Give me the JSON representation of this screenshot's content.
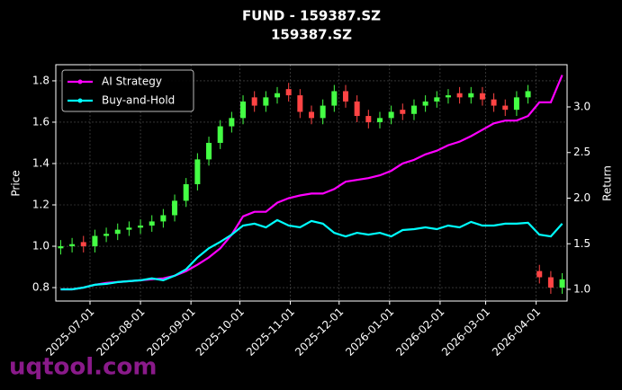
{
  "chart_data": {
    "type": "candlestick",
    "title": "FUND - 159387.SZ",
    "subtitle": "159387.SZ",
    "ylabel": "Price",
    "y2label": "Return",
    "watermark": "uqtool.com",
    "up_color": "#44ff44",
    "down_color": "#ff4444",
    "grid": true,
    "legend": "upper-left",
    "x": [
      "2025-06-13",
      "2025-06-20",
      "2025-06-27",
      "2025-07-04",
      "2025-07-11",
      "2025-07-18",
      "2025-07-25",
      "2025-08-01",
      "2025-08-08",
      "2025-08-15",
      "2025-08-22",
      "2025-08-29",
      "2025-09-05",
      "2025-09-12",
      "2025-09-19",
      "2025-09-26",
      "2025-10-03",
      "2025-10-10",
      "2025-10-17",
      "2025-10-24",
      "2025-10-31",
      "2025-11-07",
      "2025-11-14",
      "2025-11-21",
      "2025-11-28",
      "2025-12-05",
      "2025-12-12",
      "2025-12-19",
      "2025-12-26",
      "2026-01-02",
      "2026-01-09",
      "2026-01-16",
      "2026-01-23",
      "2026-01-30",
      "2026-02-06",
      "2026-02-13",
      "2026-02-20",
      "2026-02-27",
      "2026-03-06",
      "2026-03-13",
      "2026-03-20",
      "2026-03-27",
      "2026-04-03",
      "2026-04-10",
      "2026-04-17"
    ],
    "open": [
      0.99,
      1.0,
      1.02,
      1.0,
      1.05,
      1.06,
      1.08,
      1.09,
      1.1,
      1.12,
      1.15,
      1.22,
      1.3,
      1.42,
      1.5,
      1.58,
      1.62,
      1.72,
      1.68,
      1.72,
      1.76,
      1.73,
      1.65,
      1.62,
      1.68,
      1.75,
      1.7,
      1.63,
      1.6,
      1.62,
      1.66,
      1.64,
      1.68,
      1.7,
      1.72,
      1.74,
      1.72,
      1.74,
      1.71,
      1.68,
      1.66,
      1.72,
      0.88,
      0.85,
      0.8
    ],
    "high": [
      1.03,
      1.04,
      1.05,
      1.08,
      1.09,
      1.11,
      1.12,
      1.13,
      1.15,
      1.18,
      1.25,
      1.33,
      1.45,
      1.53,
      1.61,
      1.65,
      1.73,
      1.75,
      1.75,
      1.77,
      1.79,
      1.76,
      1.68,
      1.71,
      1.78,
      1.78,
      1.73,
      1.66,
      1.65,
      1.68,
      1.69,
      1.71,
      1.73,
      1.75,
      1.76,
      1.77,
      1.77,
      1.77,
      1.74,
      1.71,
      1.75,
      1.78,
      0.91,
      0.88,
      0.87
    ],
    "low": [
      0.96,
      0.97,
      0.97,
      0.97,
      1.02,
      1.03,
      1.05,
      1.06,
      1.07,
      1.09,
      1.12,
      1.19,
      1.27,
      1.39,
      1.47,
      1.55,
      1.59,
      1.65,
      1.65,
      1.69,
      1.7,
      1.62,
      1.59,
      1.59,
      1.65,
      1.67,
      1.6,
      1.57,
      1.57,
      1.59,
      1.61,
      1.61,
      1.65,
      1.67,
      1.69,
      1.69,
      1.69,
      1.68,
      1.65,
      1.63,
      1.63,
      1.69,
      0.82,
      0.77,
      0.77
    ],
    "close": [
      1.0,
      1.01,
      1.0,
      1.05,
      1.06,
      1.08,
      1.09,
      1.1,
      1.12,
      1.15,
      1.22,
      1.3,
      1.42,
      1.5,
      1.58,
      1.62,
      1.7,
      1.68,
      1.72,
      1.74,
      1.73,
      1.65,
      1.62,
      1.68,
      1.75,
      1.7,
      1.63,
      1.6,
      1.62,
      1.65,
      1.64,
      1.68,
      1.7,
      1.72,
      1.73,
      1.72,
      1.74,
      1.71,
      1.68,
      1.66,
      1.72,
      1.75,
      0.85,
      0.8,
      0.84
    ],
    "series": [
      {
        "name": "AI Strategy",
        "color": "#ff00ff",
        "axis": "y2",
        "values": [
          1.0,
          1.0,
          1.02,
          1.05,
          1.07,
          1.08,
          1.09,
          1.1,
          1.11,
          1.12,
          1.15,
          1.2,
          1.27,
          1.35,
          1.45,
          1.6,
          1.8,
          1.85,
          1.85,
          1.95,
          2.0,
          2.03,
          2.05,
          2.05,
          2.1,
          2.18,
          2.2,
          2.22,
          2.25,
          2.3,
          2.38,
          2.42,
          2.48,
          2.52,
          2.58,
          2.62,
          2.68,
          2.75,
          2.82,
          2.85,
          2.85,
          2.9,
          3.05,
          3.05,
          3.35
        ]
      },
      {
        "name": "Buy-and-Hold",
        "color": "#00ffff",
        "axis": "y2",
        "values": [
          1.0,
          1.0,
          1.02,
          1.05,
          1.06,
          1.08,
          1.09,
          1.1,
          1.12,
          1.1,
          1.15,
          1.22,
          1.35,
          1.45,
          1.52,
          1.6,
          1.7,
          1.72,
          1.68,
          1.76,
          1.7,
          1.68,
          1.75,
          1.72,
          1.62,
          1.58,
          1.62,
          1.6,
          1.62,
          1.58,
          1.65,
          1.66,
          1.68,
          1.66,
          1.7,
          1.68,
          1.74,
          1.7,
          1.7,
          1.72,
          1.72,
          1.73,
          1.6,
          1.58,
          1.72
        ]
      }
    ],
    "xlim": [
      "2025-06-10",
      "2026-04-20"
    ],
    "xticks": [
      "2025-07-01",
      "2025-08-01",
      "2025-09-01",
      "2025-10-01",
      "2025-11-01",
      "2025-12-01",
      "2026-01-01",
      "2026-02-01",
      "2026-03-01",
      "2026-04-01"
    ],
    "ylim": [
      0.735,
      1.878
    ],
    "yticks": [
      0.8,
      {
        "value": 1,
        "label": "1.0"
      },
      1.2,
      1.4,
      1.6,
      1.8
    ],
    "y2lim": [
      0.872,
      3.463
    ],
    "y2ticks": [
      {
        "value": 1,
        "label": "1.0"
      },
      1.5,
      {
        "value": 2,
        "label": "2.0"
      },
      2.5,
      {
        "value": 3,
        "label": "3.0"
      }
    ]
  }
}
